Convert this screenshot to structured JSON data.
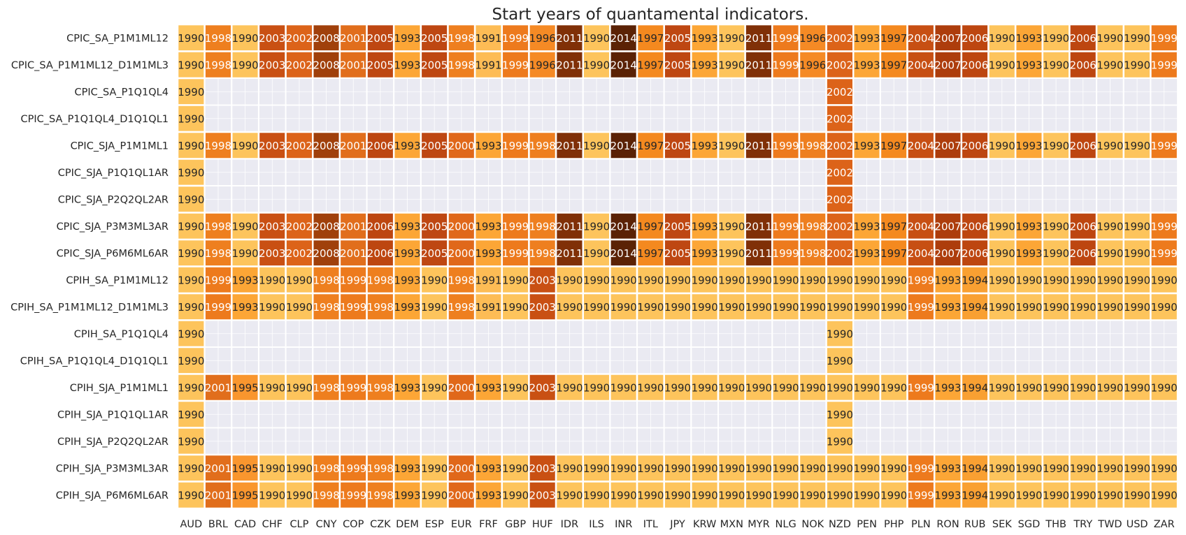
{
  "chart_data": {
    "type": "heatmap",
    "title": "Start years of quantamental indicators.",
    "columns": [
      "AUD",
      "BRL",
      "CAD",
      "CHF",
      "CLP",
      "CNY",
      "COP",
      "CZK",
      "DEM",
      "ESP",
      "EUR",
      "FRF",
      "GBP",
      "HUF",
      "IDR",
      "ILS",
      "INR",
      "ITL",
      "JPY",
      "KRW",
      "MXN",
      "MYR",
      "NLG",
      "NOK",
      "NZD",
      "PEN",
      "PHP",
      "PLN",
      "RON",
      "RUB",
      "SEK",
      "SGD",
      "THB",
      "TRY",
      "TWD",
      "USD",
      "ZAR"
    ],
    "rows": [
      "CPIC_SA_P1M1ML12",
      "CPIC_SA_P1M1ML12_D1M1ML3",
      "CPIC_SA_P1Q1QL4",
      "CPIC_SA_P1Q1QL4_D1Q1QL1",
      "CPIC_SJA_P1M1ML1",
      "CPIC_SJA_P1Q1QL1AR",
      "CPIC_SJA_P2Q2QL2AR",
      "CPIC_SJA_P3M3ML3AR",
      "CPIC_SJA_P6M6ML6AR",
      "CPIH_SA_P1M1ML12",
      "CPIH_SA_P1M1ML12_D1M1ML3",
      "CPIH_SA_P1Q1QL4",
      "CPIH_SA_P1Q1QL4_D1Q1QL1",
      "CPIH_SJA_P1M1ML1",
      "CPIH_SJA_P1Q1QL1AR",
      "CPIH_SJA_P2Q2QL2AR",
      "CPIH_SJA_P3M3ML3AR",
      "CPIH_SJA_P6M6ML6AR"
    ],
    "values": [
      [
        1990,
        1998,
        1990,
        2003,
        2002,
        2008,
        2001,
        2005,
        1993,
        2005,
        1998,
        1991,
        1999,
        1996,
        2011,
        1990,
        2014,
        1997,
        2005,
        1993,
        1990,
        2011,
        1999,
        1996,
        2002,
        1993,
        1997,
        2004,
        2007,
        2006,
        1990,
        1993,
        1990,
        2006,
        1990,
        1990,
        1999
      ],
      [
        1990,
        1998,
        1990,
        2003,
        2002,
        2008,
        2001,
        2005,
        1993,
        2005,
        1998,
        1991,
        1999,
        1996,
        2011,
        1990,
        2014,
        1997,
        2005,
        1993,
        1990,
        2011,
        1999,
        1996,
        2002,
        1993,
        1997,
        2004,
        2007,
        2006,
        1990,
        1993,
        1990,
        2006,
        1990,
        1990,
        1999
      ],
      [
        1990,
        null,
        null,
        null,
        null,
        null,
        null,
        null,
        null,
        null,
        null,
        null,
        null,
        null,
        null,
        null,
        null,
        null,
        null,
        null,
        null,
        null,
        null,
        null,
        2002,
        null,
        null,
        null,
        null,
        null,
        null,
        null,
        null,
        null,
        null,
        null,
        null
      ],
      [
        1990,
        null,
        null,
        null,
        null,
        null,
        null,
        null,
        null,
        null,
        null,
        null,
        null,
        null,
        null,
        null,
        null,
        null,
        null,
        null,
        null,
        null,
        null,
        null,
        2002,
        null,
        null,
        null,
        null,
        null,
        null,
        null,
        null,
        null,
        null,
        null,
        null
      ],
      [
        1990,
        1998,
        1990,
        2003,
        2002,
        2008,
        2001,
        2006,
        1993,
        2005,
        2000,
        1993,
        1999,
        1998,
        2011,
        1990,
        2014,
        1997,
        2005,
        1993,
        1990,
        2011,
        1999,
        1998,
        2002,
        1993,
        1997,
        2004,
        2007,
        2006,
        1990,
        1993,
        1990,
        2006,
        1990,
        1990,
        1999
      ],
      [
        1990,
        null,
        null,
        null,
        null,
        null,
        null,
        null,
        null,
        null,
        null,
        null,
        null,
        null,
        null,
        null,
        null,
        null,
        null,
        null,
        null,
        null,
        null,
        null,
        2002,
        null,
        null,
        null,
        null,
        null,
        null,
        null,
        null,
        null,
        null,
        null,
        null
      ],
      [
        1990,
        null,
        null,
        null,
        null,
        null,
        null,
        null,
        null,
        null,
        null,
        null,
        null,
        null,
        null,
        null,
        null,
        null,
        null,
        null,
        null,
        null,
        null,
        null,
        2002,
        null,
        null,
        null,
        null,
        null,
        null,
        null,
        null,
        null,
        null,
        null,
        null
      ],
      [
        1990,
        1998,
        1990,
        2003,
        2002,
        2008,
        2001,
        2006,
        1993,
        2005,
        2000,
        1993,
        1999,
        1998,
        2011,
        1990,
        2014,
        1997,
        2005,
        1993,
        1990,
        2011,
        1999,
        1998,
        2002,
        1993,
        1997,
        2004,
        2007,
        2006,
        1990,
        1993,
        1990,
        2006,
        1990,
        1990,
        1999
      ],
      [
        1990,
        1998,
        1990,
        2003,
        2002,
        2008,
        2001,
        2006,
        1993,
        2005,
        2000,
        1993,
        1999,
        1998,
        2011,
        1990,
        2014,
        1997,
        2005,
        1993,
        1990,
        2011,
        1999,
        1998,
        2002,
        1993,
        1997,
        2004,
        2007,
        2006,
        1990,
        1993,
        1990,
        2006,
        1990,
        1990,
        1999
      ],
      [
        1990,
        1999,
        1993,
        1990,
        1990,
        1998,
        1999,
        1998,
        1993,
        1990,
        1998,
        1991,
        1990,
        2003,
        1990,
        1990,
        1990,
        1990,
        1990,
        1990,
        1990,
        1990,
        1990,
        1990,
        1990,
        1990,
        1990,
        1999,
        1993,
        1994,
        1990,
        1990,
        1990,
        1990,
        1990,
        1990,
        1990
      ],
      [
        1990,
        1999,
        1993,
        1990,
        1990,
        1998,
        1999,
        1998,
        1993,
        1990,
        1998,
        1991,
        1990,
        2003,
        1990,
        1990,
        1990,
        1990,
        1990,
        1990,
        1990,
        1990,
        1990,
        1990,
        1990,
        1990,
        1990,
        1999,
        1993,
        1994,
        1990,
        1990,
        1990,
        1990,
        1990,
        1990,
        1990
      ],
      [
        1990,
        null,
        null,
        null,
        null,
        null,
        null,
        null,
        null,
        null,
        null,
        null,
        null,
        null,
        null,
        null,
        null,
        null,
        null,
        null,
        null,
        null,
        null,
        null,
        1990,
        null,
        null,
        null,
        null,
        null,
        null,
        null,
        null,
        null,
        null,
        null,
        null
      ],
      [
        1990,
        null,
        null,
        null,
        null,
        null,
        null,
        null,
        null,
        null,
        null,
        null,
        null,
        null,
        null,
        null,
        null,
        null,
        null,
        null,
        null,
        null,
        null,
        null,
        1990,
        null,
        null,
        null,
        null,
        null,
        null,
        null,
        null,
        null,
        null,
        null,
        null
      ],
      [
        1990,
        2001,
        1995,
        1990,
        1990,
        1998,
        1999,
        1998,
        1993,
        1990,
        2000,
        1993,
        1990,
        2003,
        1990,
        1990,
        1990,
        1990,
        1990,
        1990,
        1990,
        1990,
        1990,
        1990,
        1990,
        1990,
        1990,
        1999,
        1993,
        1994,
        1990,
        1990,
        1990,
        1990,
        1990,
        1990,
        1990
      ],
      [
        1990,
        null,
        null,
        null,
        null,
        null,
        null,
        null,
        null,
        null,
        null,
        null,
        null,
        null,
        null,
        null,
        null,
        null,
        null,
        null,
        null,
        null,
        null,
        null,
        1990,
        null,
        null,
        null,
        null,
        null,
        null,
        null,
        null,
        null,
        null,
        null,
        null
      ],
      [
        1990,
        null,
        null,
        null,
        null,
        null,
        null,
        null,
        null,
        null,
        null,
        null,
        null,
        null,
        null,
        null,
        null,
        null,
        null,
        null,
        null,
        null,
        null,
        null,
        1990,
        null,
        null,
        null,
        null,
        null,
        null,
        null,
        null,
        null,
        null,
        null,
        null
      ],
      [
        1990,
        2001,
        1995,
        1990,
        1990,
        1998,
        1999,
        1998,
        1993,
        1990,
        2000,
        1993,
        1990,
        2003,
        1990,
        1990,
        1990,
        1990,
        1990,
        1990,
        1990,
        1990,
        1990,
        1990,
        1990,
        1990,
        1990,
        1999,
        1993,
        1994,
        1990,
        1990,
        1990,
        1990,
        1990,
        1990,
        1990
      ],
      [
        1990,
        2001,
        1995,
        1990,
        1990,
        1998,
        1999,
        1998,
        1993,
        1990,
        2000,
        1993,
        1990,
        2003,
        1990,
        1990,
        1990,
        1990,
        1990,
        1990,
        1990,
        1990,
        1990,
        1990,
        1990,
        1990,
        1990,
        1999,
        1993,
        1994,
        1990,
        1990,
        1990,
        1990,
        1990,
        1990,
        1990
      ]
    ],
    "colormap": {
      "1990": "#fdc45c",
      "1991": "#fdbc55",
      "1993": "#fca636",
      "1994": "#f9a032",
      "1995": "#f9962e",
      "1996": "#f58a25",
      "1997": "#f4891f",
      "1998": "#ee7f1f",
      "1999": "#ed7a1d",
      "2000": "#e0681a",
      "2001": "#e16e1c",
      "2002": "#dc6319",
      "2003": "#c95013",
      "2004": "#c74f13",
      "2005": "#be4712",
      "2006": "#bd4610",
      "2007": "#ad3d0c",
      "2008": "#a0400b",
      "2011": "#803007",
      "2014": "#5b2205"
    },
    "missing_color": "#eaeaf2",
    "grid": true,
    "legend": "none"
  }
}
